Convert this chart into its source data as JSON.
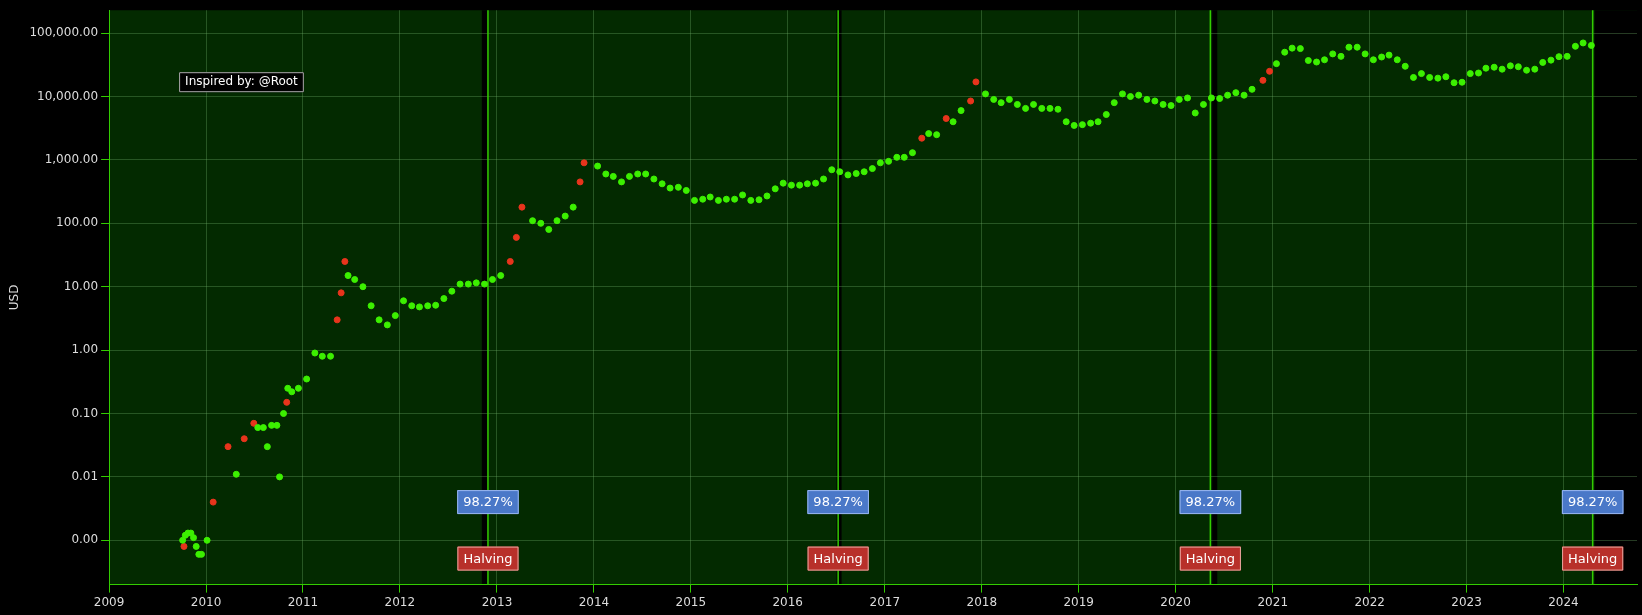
{
  "chart_data": {
    "type": "scatter",
    "ylabel": "USD",
    "log": "y",
    "grid": true,
    "legend": false,
    "marker": "circle",
    "xlim": [
      "2009-01-01",
      "2024-10-04"
    ],
    "xticks": [
      {
        "value": "2009",
        "label": "2009"
      },
      {
        "value": "2010",
        "label": "2010"
      },
      {
        "value": "2011",
        "label": "2011"
      },
      {
        "value": "2012",
        "label": "2012"
      },
      {
        "value": "2013",
        "label": "2013"
      },
      {
        "value": "2014",
        "label": "2014"
      },
      {
        "value": "2015",
        "label": "2015"
      },
      {
        "value": "2016",
        "label": "2016"
      },
      {
        "value": "2017",
        "label": "2017"
      },
      {
        "value": "2018",
        "label": "2018"
      },
      {
        "value": "2019",
        "label": "2019"
      },
      {
        "value": "2020",
        "label": "2020"
      },
      {
        "value": "2021",
        "label": "2021"
      },
      {
        "value": "2022",
        "label": "2022"
      },
      {
        "value": "2023",
        "label": "2023"
      },
      {
        "value": "2024",
        "label": "2024"
      }
    ],
    "ylim": [
      0.0002,
      230000
    ],
    "yticks": [
      {
        "value": 0.001,
        "label": "0.00"
      },
      {
        "value": 0.01,
        "label": "0.01"
      },
      {
        "value": 0.1,
        "label": "0.10"
      },
      {
        "value": 1,
        "label": "1.00"
      },
      {
        "value": 10,
        "label": "10.00"
      },
      {
        "value": 100,
        "label": "100.00"
      },
      {
        "value": 1000,
        "label": "1,000.00"
      },
      {
        "value": 10000,
        "label": "10,000.00"
      },
      {
        "value": 100000,
        "label": "100,000.00"
      }
    ],
    "series": [
      {
        "color": "#3cf000",
        "x": [
          "2009-10-05",
          "2009-10-15",
          "2009-10-25",
          "2009-11-05",
          "2009-11-15",
          "2009-11-25",
          "2009-12-05",
          "2009-12-15",
          "2010-01-05",
          "2010-04-25",
          "2010-07-15",
          "2010-08-05",
          "2010-08-20",
          "2010-09-05",
          "2010-09-25",
          "2010-10-05",
          "2010-10-20",
          "2010-11-05",
          "2010-11-20",
          "2010-12-15",
          "2011-01-15",
          "2011-02-15",
          "2011-03-15",
          "2011-04-15",
          "2011-06-20",
          "2011-07-15",
          "2011-08-15",
          "2011-09-15",
          "2011-10-15",
          "2011-11-15",
          "2011-12-15",
          "2012-01-15",
          "2012-02-15",
          "2012-03-15",
          "2012-04-15",
          "2012-05-15",
          "2012-06-15",
          "2012-07-15",
          "2012-08-15",
          "2012-09-15",
          "2012-10-15",
          "2012-11-15",
          "2012-12-15",
          "2013-01-15",
          "2013-05-15",
          "2013-06-15",
          "2013-07-15",
          "2013-08-15",
          "2013-09-15",
          "2013-10-15",
          "2014-01-15",
          "2014-02-15",
          "2014-03-15",
          "2014-04-15",
          "2014-05-15",
          "2014-06-15",
          "2014-07-15",
          "2014-08-15",
          "2014-09-15",
          "2014-10-15",
          "2014-11-15",
          "2014-12-15",
          "2015-01-15",
          "2015-02-15",
          "2015-03-15",
          "2015-04-15",
          "2015-05-15",
          "2015-06-15",
          "2015-07-15",
          "2015-08-15",
          "2015-09-15",
          "2015-10-15",
          "2015-11-15",
          "2015-12-15",
          "2016-01-15",
          "2016-02-15",
          "2016-03-15",
          "2016-04-15",
          "2016-05-15",
          "2016-06-15",
          "2016-07-15",
          "2016-08-15",
          "2016-09-15",
          "2016-10-15",
          "2016-11-15",
          "2016-12-15",
          "2017-01-15",
          "2017-02-15",
          "2017-03-15",
          "2017-04-15",
          "2017-06-15",
          "2017-07-15",
          "2017-09-15",
          "2017-10-15",
          "2018-01-15",
          "2018-02-15",
          "2018-03-15",
          "2018-04-15",
          "2018-05-15",
          "2018-06-15",
          "2018-07-15",
          "2018-08-15",
          "2018-09-15",
          "2018-10-15",
          "2018-11-15",
          "2018-12-15",
          "2019-01-15",
          "2019-02-15",
          "2019-03-15",
          "2019-04-15",
          "2019-05-15",
          "2019-06-15",
          "2019-07-15",
          "2019-08-15",
          "2019-09-15",
          "2019-10-15",
          "2019-11-15",
          "2019-12-15",
          "2020-01-15",
          "2020-02-15",
          "2020-03-15",
          "2020-04-15",
          "2020-05-15",
          "2020-06-15",
          "2020-07-15",
          "2020-08-15",
          "2020-09-15",
          "2020-10-15",
          "2021-01-15",
          "2021-02-15",
          "2021-03-15",
          "2021-04-15",
          "2021-05-15",
          "2021-06-15",
          "2021-07-15",
          "2021-08-15",
          "2021-09-15",
          "2021-10-15",
          "2021-11-15",
          "2021-12-15",
          "2022-01-15",
          "2022-02-15",
          "2022-03-15",
          "2022-04-15",
          "2022-05-15",
          "2022-06-15",
          "2022-07-15",
          "2022-08-15",
          "2022-09-15",
          "2022-10-15",
          "2022-11-15",
          "2022-12-15",
          "2023-01-15",
          "2023-02-15",
          "2023-03-15",
          "2023-04-15",
          "2023-05-15",
          "2023-06-15",
          "2023-07-15",
          "2023-08-15",
          "2023-09-15",
          "2023-10-15",
          "2023-11-15",
          "2023-12-15",
          "2024-01-15",
          "2024-02-15",
          "2024-03-15",
          "2024-04-15"
        ],
        "values": [
          0.001,
          0.0012,
          0.0013,
          0.0013,
          0.0011,
          0.0008,
          0.0006,
          0.0006,
          0.001,
          0.011,
          0.06,
          0.06,
          0.03,
          0.065,
          0.065,
          0.01,
          0.1,
          0.25,
          0.22,
          0.25,
          0.35,
          0.9,
          0.8,
          0.8,
          15,
          13,
          10,
          5,
          3,
          2.5,
          3.5,
          6,
          5,
          4.8,
          5,
          5.1,
          6.5,
          8.5,
          11,
          11,
          11.5,
          11,
          13,
          15,
          110,
          100,
          80,
          110,
          130,
          180,
          800,
          600,
          550,
          450,
          550,
          600,
          600,
          500,
          420,
          360,
          370,
          330,
          230,
          240,
          260,
          230,
          240,
          240,
          280,
          230,
          235,
          270,
          350,
          430,
          400,
          400,
          420,
          430,
          500,
          700,
          650,
          580,
          610,
          650,
          730,
          900,
          950,
          1100,
          1100,
          1300,
          2600,
          2500,
          4000,
          6000,
          11000,
          9000,
          8000,
          9000,
          7500,
          6500,
          7500,
          6500,
          6500,
          6300,
          4000,
          3500,
          3600,
          3800,
          4000,
          5200,
          8000,
          11000,
          10000,
          10500,
          9000,
          8500,
          7500,
          7200,
          9000,
          9500,
          5500,
          7500,
          9500,
          9300,
          10500,
          11500,
          10500,
          13000,
          33000,
          50000,
          58000,
          57000,
          37000,
          35000,
          38000,
          47000,
          43000,
          60000,
          60000,
          47000,
          38000,
          42000,
          45000,
          38000,
          30000,
          20000,
          23000,
          20000,
          19500,
          20500,
          16500,
          16800,
          23000,
          23500,
          28000,
          29000,
          27000,
          30500,
          29500,
          26000,
          27000,
          34500,
          37500,
          42500,
          43000,
          62000,
          70000,
          64000
        ]
      },
      {
        "color": "#e8341c",
        "x": [
          "2009-10-10",
          "2010-01-28",
          "2010-03-25",
          "2010-05-25",
          "2010-06-30",
          "2010-11-01",
          "2011-05-10",
          "2011-05-25",
          "2011-06-08",
          "2013-02-20",
          "2013-03-15",
          "2013-04-05",
          "2013-11-10",
          "2013-11-25",
          "2017-05-20",
          "2017-08-20",
          "2017-11-20",
          "2017-12-10",
          "2020-11-25",
          "2020-12-20"
        ],
        "values": [
          0.0008,
          0.004,
          0.03,
          0.04,
          0.07,
          0.15,
          3,
          8,
          25,
          25,
          60,
          180,
          450,
          900,
          2200,
          4500,
          8500,
          17000,
          18000,
          25000
        ]
      }
    ],
    "bands": [
      {
        "axis": "x",
        "from": "2012-11-05",
        "to": "2012-11-27",
        "color": "#000000"
      },
      {
        "axis": "x",
        "from": "2016-07-03",
        "to": "2016-07-22",
        "color": "#000000"
      },
      {
        "axis": "x",
        "from": "2020-05-18",
        "to": "2020-06-06",
        "color": "#000000"
      },
      {
        "axis": "x",
        "from": "2024-04-27",
        "to": "2024-10-04",
        "color": "#000000"
      }
    ],
    "ref_lines": [
      {
        "axis": "x",
        "value": "2012-11-28",
        "label": "Halving",
        "color": "#33cc00"
      },
      {
        "axis": "x",
        "value": "2016-07-09",
        "label": "Halving",
        "color": "#33cc00"
      },
      {
        "axis": "x",
        "value": "2020-05-11",
        "label": "Halving",
        "color": "#33cc00"
      },
      {
        "axis": "x",
        "value": "2024-04-20",
        "label": "Halving",
        "color": "#33cc00"
      }
    ],
    "annotations": [
      "Inspired by: @Root",
      {
        "text": "98.27%",
        "x": "2012-11-28",
        "y": 0.004
      },
      {
        "text": "98.27%",
        "x": "2016-07-09",
        "y": 0.004
      },
      {
        "text": "98.27%",
        "x": "2020-05-11",
        "y": 0.004
      },
      {
        "text": "98.27%",
        "x": "2024-04-20",
        "y": 0.004
      }
    ]
  }
}
